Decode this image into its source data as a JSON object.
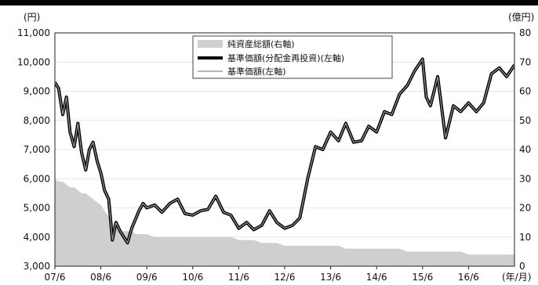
{
  "chart_data": {
    "type": "line",
    "left_unit": "(円)",
    "right_unit": "(億円)",
    "x_unit": "(年/月)",
    "x_ticks": [
      "07/6",
      "08/6",
      "09/6",
      "10/6",
      "11/6",
      "12/6",
      "13/6",
      "14/6",
      "15/6",
      "16/6"
    ],
    "y_left_ticks": [
      "3,000",
      "4,000",
      "5,000",
      "6,000",
      "7,000",
      "8,000",
      "9,000",
      "10,000",
      "11,000"
    ],
    "y_left_range": [
      3000,
      11000
    ],
    "y_right_ticks": [
      "0",
      "10",
      "20",
      "30",
      "40",
      "50",
      "60",
      "70",
      "80"
    ],
    "y_right_range": [
      0,
      80
    ],
    "legend": {
      "items": [
        {
          "label": "純資産総額(右軸)",
          "style": "area",
          "color": "#c8c8c8"
        },
        {
          "label": "基準価額(分配金再投資)(左軸)",
          "style": "thick",
          "color": "#000000"
        },
        {
          "label": "基準価額(左軸)",
          "style": "thin",
          "color": "#8a8a8a"
        }
      ]
    },
    "x_values": [
      2007.5,
      2007.58,
      2007.67,
      2007.75,
      2007.83,
      2007.92,
      2008.0,
      2008.08,
      2008.17,
      2008.25,
      2008.33,
      2008.42,
      2008.5,
      2008.58,
      2008.67,
      2008.75,
      2008.83,
      2008.92,
      2009.0,
      2009.08,
      2009.17,
      2009.25,
      2009.33,
      2009.42,
      2009.5,
      2009.67,
      2009.83,
      2010.0,
      2010.17,
      2010.33,
      2010.5,
      2010.67,
      2010.83,
      2011.0,
      2011.17,
      2011.33,
      2011.5,
      2011.67,
      2011.83,
      2012.0,
      2012.17,
      2012.33,
      2012.5,
      2012.67,
      2012.83,
      2013.0,
      2013.17,
      2013.33,
      2013.5,
      2013.67,
      2013.83,
      2014.0,
      2014.17,
      2014.33,
      2014.5,
      2014.67,
      2014.83,
      2015.0,
      2015.17,
      2015.33,
      2015.5,
      2015.58,
      2015.67,
      2015.83,
      2016.0,
      2016.17,
      2016.33,
      2016.5,
      2016.67,
      2016.83,
      2017.0,
      2017.17,
      2017.33,
      2017.5
    ],
    "series": [
      {
        "name": "基準価額(分配金再投資)(左軸)",
        "values": [
          9300,
          9100,
          8200,
          8800,
          7600,
          7100,
          7900,
          6900,
          6300,
          7000,
          7250,
          6600,
          6200,
          5600,
          5300,
          3900,
          4500,
          4200,
          4000,
          3800,
          4300,
          4600,
          4900,
          5150,
          5000,
          5100,
          4850,
          5150,
          5300,
          4800,
          4750,
          4900,
          4950,
          5400,
          4850,
          4750,
          4300,
          4500,
          4250,
          4400,
          4900,
          4500,
          4300,
          4400,
          4650,
          6000,
          7100,
          7000,
          7600,
          7300,
          7900,
          7250,
          7300,
          7800,
          7600,
          8300,
          8200,
          8900,
          9200,
          9700,
          10100,
          8800,
          8500,
          9500,
          7400,
          8500,
          8300,
          8600,
          8300,
          8600,
          9600,
          9800,
          9500,
          9900
        ]
      },
      {
        "name": "基準価額(左軸)",
        "values": [
          9300,
          9100,
          8200,
          8800,
          7600,
          7100,
          7900,
          6900,
          6300,
          7000,
          7250,
          6600,
          6200,
          5600,
          5300,
          3900,
          4500,
          4200,
          4000,
          3800,
          4300,
          4600,
          4900,
          5150,
          5000,
          5100,
          4850,
          5150,
          5300,
          4800,
          4750,
          4900,
          4950,
          5400,
          4850,
          4750,
          4300,
          4500,
          4250,
          4400,
          4900,
          4500,
          4300,
          4400,
          4650,
          6000,
          7100,
          7000,
          7600,
          7300,
          7900,
          7250,
          7300,
          7800,
          7600,
          8300,
          8200,
          8900,
          9200,
          9700,
          10100,
          8800,
          8500,
          9500,
          7400,
          8500,
          8300,
          8600,
          8300,
          8600,
          9600,
          9800,
          9500,
          9900
        ]
      },
      {
        "name": "純資産総額(右軸)",
        "values": [
          30,
          29,
          29,
          28,
          27,
          27,
          26,
          25,
          25,
          24,
          23,
          22,
          21,
          19,
          17,
          15,
          13,
          12,
          12,
          12,
          12,
          11,
          11,
          11,
          11,
          10,
          10,
          10,
          10,
          10,
          10,
          10,
          10,
          10,
          10,
          10,
          9,
          9,
          9,
          8,
          8,
          8,
          7,
          7,
          7,
          7,
          7,
          7,
          7,
          7,
          6,
          6,
          6,
          6,
          6,
          6,
          6,
          6,
          5,
          5,
          5,
          5,
          5,
          5,
          5,
          5,
          5,
          4,
          4,
          4,
          4,
          4,
          4,
          4
        ]
      }
    ]
  }
}
